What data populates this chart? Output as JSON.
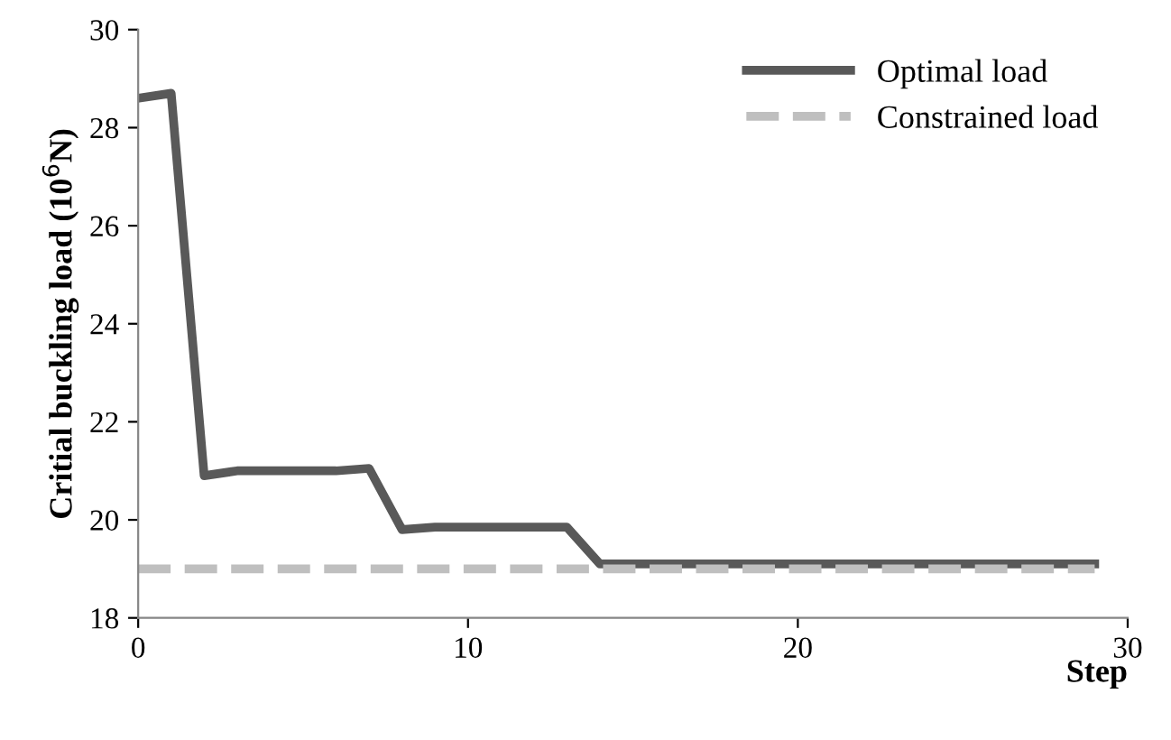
{
  "chart_data": {
    "type": "line",
    "xlabel": "Step",
    "ylabel": "Critial buckling load (10$^{6}$N)",
    "x": [
      0,
      1,
      2,
      3,
      4,
      5,
      6,
      7,
      8,
      9,
      10,
      11,
      12,
      13,
      14,
      15,
      16,
      17,
      18,
      19,
      20,
      21,
      22,
      23,
      24,
      25,
      26,
      27,
      28,
      29
    ],
    "series": [
      {
        "name": "Optimal load",
        "color": "#595959",
        "line_style": "solid",
        "values": [
          28.6,
          28.7,
          20.9,
          21.0,
          21.0,
          21.0,
          21.0,
          21.05,
          19.8,
          19.85,
          19.85,
          19.85,
          19.85,
          19.85,
          19.1,
          19.1,
          19.1,
          19.1,
          19.1,
          19.1,
          19.1,
          19.1,
          19.1,
          19.1,
          19.1,
          19.1,
          19.1,
          19.1,
          19.1,
          19.1
        ]
      },
      {
        "name": "Constrained load",
        "color": "#bfbfbf",
        "line_style": "dashed",
        "values": [
          19,
          19,
          19,
          19,
          19,
          19,
          19,
          19,
          19,
          19,
          19,
          19,
          19,
          19,
          19,
          19,
          19,
          19,
          19,
          19,
          19,
          19,
          19,
          19,
          19,
          19,
          19,
          19,
          19,
          19
        ]
      }
    ],
    "xlim": [
      0,
      30
    ],
    "xticks": [
      0,
      10,
      20,
      30
    ],
    "ylim": [
      18,
      30
    ],
    "yticks": [
      18,
      20,
      22,
      24,
      26,
      28,
      30
    ],
    "grid": false,
    "legend": "top right",
    "marker": "none"
  }
}
